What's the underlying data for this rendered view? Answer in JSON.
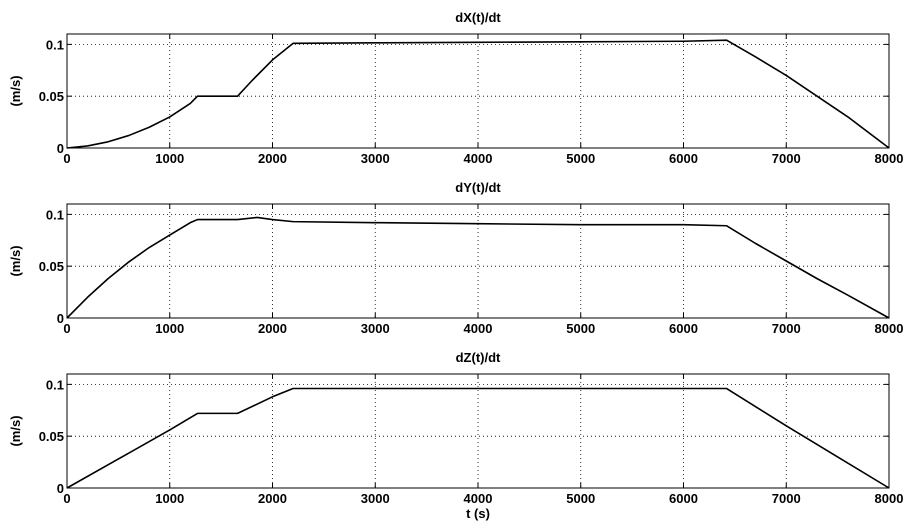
{
  "chart_data": [
    {
      "type": "line",
      "title": "dX(t)/dt",
      "ylabel": "(m/s)",
      "xlabel": "",
      "xlim": [
        0,
        8000
      ],
      "ylim": [
        0,
        0.11
      ],
      "xticks": [
        "0",
        "1000",
        "2000",
        "3000",
        "4000",
        "5000",
        "6000",
        "7000",
        "8000"
      ],
      "yticks": [
        "0",
        "0.05",
        "0.1"
      ],
      "grid": true,
      "line_color": "#000000",
      "series": [
        {
          "x": [
            0,
            200,
            400,
            600,
            800,
            1000,
            1200,
            1270,
            1660,
            1800,
            2000,
            2200,
            3000,
            4000,
            5000,
            6000,
            6420,
            6700,
            7000,
            7300,
            7600,
            8000
          ],
          "y": [
            0,
            0.002,
            0.006,
            0.012,
            0.02,
            0.03,
            0.043,
            0.05,
            0.05,
            0.065,
            0.085,
            0.101,
            0.1015,
            0.102,
            0.1025,
            0.103,
            0.104,
            0.088,
            0.07,
            0.05,
            0.03,
            0
          ]
        }
      ]
    },
    {
      "type": "line",
      "title": "dY(t)/dt",
      "ylabel": "(m/s)",
      "xlabel": "",
      "xlim": [
        0,
        8000
      ],
      "ylim": [
        0,
        0.11
      ],
      "xticks": [
        "0",
        "1000",
        "2000",
        "3000",
        "4000",
        "5000",
        "6000",
        "7000",
        "8000"
      ],
      "yticks": [
        "0",
        "0.05",
        "0.1"
      ],
      "grid": true,
      "line_color": "#000000",
      "series": [
        {
          "x": [
            0,
            200,
            400,
            600,
            800,
            1000,
            1200,
            1270,
            1660,
            1850,
            2000,
            2200,
            3000,
            4000,
            5000,
            6000,
            6420,
            6700,
            7000,
            7300,
            7600,
            8000
          ],
          "y": [
            0,
            0.02,
            0.038,
            0.054,
            0.068,
            0.08,
            0.092,
            0.095,
            0.095,
            0.097,
            0.095,
            0.093,
            0.092,
            0.091,
            0.09,
            0.09,
            0.089,
            0.072,
            0.055,
            0.038,
            0.022,
            0
          ]
        }
      ]
    },
    {
      "type": "line",
      "title": "dZ(t)/dt",
      "ylabel": "(m/s)",
      "xlabel": "t (s)",
      "xlim": [
        0,
        8000
      ],
      "ylim": [
        0,
        0.11
      ],
      "xticks": [
        "0",
        "1000",
        "2000",
        "3000",
        "4000",
        "5000",
        "6000",
        "7000",
        "8000"
      ],
      "yticks": [
        "0",
        "0.05",
        "0.1"
      ],
      "grid": true,
      "line_color": "#000000",
      "series": [
        {
          "x": [
            0,
            500,
            1000,
            1270,
            1660,
            2000,
            2200,
            3000,
            4000,
            5000,
            6000,
            6420,
            7000,
            7500,
            8000
          ],
          "y": [
            0,
            0.028,
            0.056,
            0.072,
            0.072,
            0.088,
            0.096,
            0.096,
            0.096,
            0.096,
            0.096,
            0.096,
            0.06,
            0.03,
            0
          ]
        }
      ]
    }
  ]
}
